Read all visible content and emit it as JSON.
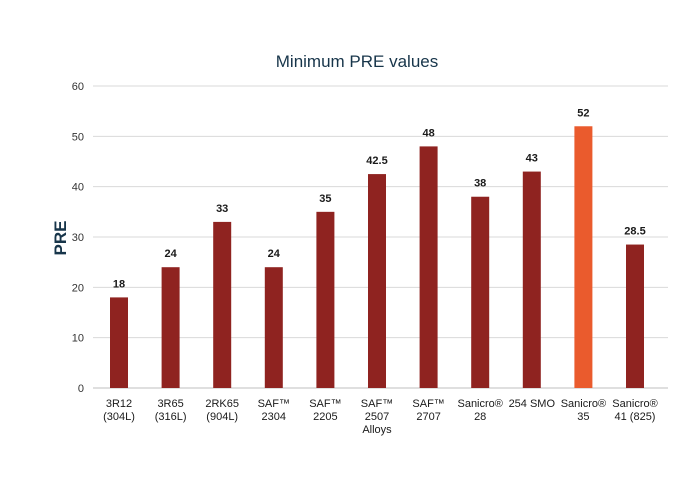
{
  "chart_data": {
    "type": "bar",
    "title": "Minimum PRE values",
    "ylabel": "PRE",
    "xlabel": "",
    "ylim": [
      0,
      60
    ],
    "yticks": [
      0,
      10,
      20,
      30,
      40,
      50,
      60
    ],
    "grid": true,
    "categories": [
      [
        "3R12",
        "(304L)"
      ],
      [
        "3R65",
        "(316L)"
      ],
      [
        "2RK65",
        "(904L)"
      ],
      [
        "SAF™",
        "2304"
      ],
      [
        "SAF™",
        "2205"
      ],
      [
        "SAF™",
        "2507",
        "Alloys"
      ],
      [
        "SAF™",
        "2707"
      ],
      [
        "Sanicro®",
        "28"
      ],
      [
        "254 SMO"
      ],
      [
        "Sanicro®",
        "35"
      ],
      [
        "Sanicro®",
        "41 (825)"
      ]
    ],
    "values": [
      18,
      24,
      33,
      24,
      35,
      42.5,
      48,
      38,
      43,
      52,
      28.5
    ],
    "value_labels": [
      "18",
      "24",
      "33",
      "24",
      "35",
      "42.5",
      "48",
      "38",
      "43",
      "52",
      "28.5"
    ],
    "highlight_index": 9,
    "colors": {
      "bar": "#8f2320",
      "highlight": "#ea5b2d",
      "title": "#17354a"
    }
  }
}
